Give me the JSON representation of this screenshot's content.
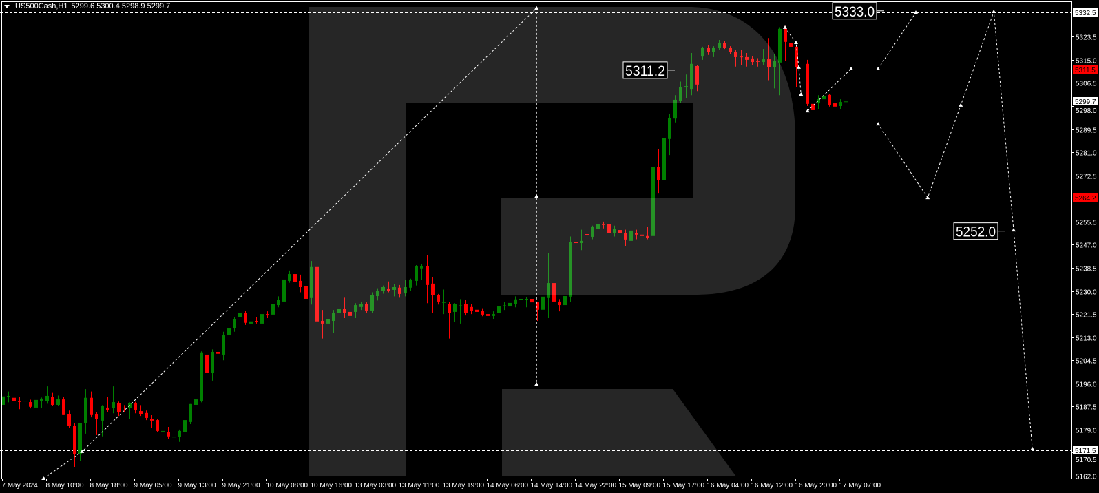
{
  "header": {
    "symbol": ".US500Cash,H1",
    "ohlc": "5299.6 5300.4 5298.9 5299.7",
    "menu_icon": "triangle-down-icon"
  },
  "chart_data": {
    "type": "candlestick",
    "title": ".US500Cash,H1",
    "ylim": [
      5161.0,
      5337.0
    ],
    "grid": false,
    "colors": {
      "up": "#008000",
      "down": "#ff0000",
      "background": "#000000",
      "axis": "#ffffff",
      "watermark": "#262626"
    },
    "x_tick_labels": [
      "7 May 2024",
      "8 May 10:00",
      "8 May 18:00",
      "9 May 05:00",
      "9 May 13:00",
      "9 May 21:00",
      "10 May 08:00",
      "10 May 16:00",
      "13 May 03:00",
      "13 May 11:00",
      "13 May 19:00",
      "14 May 06:00",
      "14 May 14:00",
      "14 May 22:00",
      "15 May 09:00",
      "15 May 17:00",
      "16 May 04:00",
      "16 May 12:00",
      "16 May 20:00",
      "17 May 07:00"
    ],
    "y_tick_labels": [
      "5323.5",
      "5315.0",
      "5306.5",
      "5298.0",
      "5289.5",
      "5281.0",
      "5272.5",
      "5255.5",
      "5247.0",
      "5238.5",
      "5230.0",
      "5221.5",
      "5213.0",
      "5204.5",
      "5196.0",
      "5187.5",
      "5179.0",
      "5170.5",
      "5162.0"
    ],
    "candles": [
      [
        5188.1,
        5192.5,
        5183.5,
        5191.2
      ],
      [
        5190.9,
        5193.0,
        5189.0,
        5191.4
      ],
      [
        5190.7,
        5192.5,
        5188.5,
        5189.4
      ],
      [
        5189.4,
        5191.0,
        5186.5,
        5189.3
      ],
      [
        5189.4,
        5191.0,
        5187.5,
        5189.6
      ],
      [
        5189.1,
        5190.0,
        5186.8,
        5187.4
      ],
      [
        5187.1,
        5190.2,
        5186.5,
        5189.9
      ],
      [
        5189.6,
        5190.8,
        5187.0,
        5190.4
      ],
      [
        5189.6,
        5194.9,
        5188.5,
        5191.4
      ],
      [
        5190.9,
        5192.5,
        5187.6,
        5188.1
      ],
      [
        5188.1,
        5191.5,
        5187.6,
        5190.1
      ],
      [
        5190.1,
        5191.0,
        5184.6,
        5184.6
      ],
      [
        5184.8,
        5186.0,
        5179.5,
        5180.5
      ],
      [
        5180.5,
        5181.5,
        5165.3,
        5170.1
      ],
      [
        5170.1,
        5181.5,
        5167.5,
        5181.5
      ],
      [
        5181.3,
        5193.9,
        5177.5,
        5190.7
      ],
      [
        5190.7,
        5193.0,
        5183.5,
        5184.6
      ],
      [
        5184.8,
        5185.5,
        5177.0,
        5182.8
      ],
      [
        5182.3,
        5188.0,
        5176.5,
        5187.6
      ],
      [
        5187.1,
        5191.0,
        5185.5,
        5186.3
      ],
      [
        5186.9,
        5194.9,
        5185.0,
        5189.1
      ],
      [
        5188.6,
        5189.3,
        5184.0,
        5185.3
      ],
      [
        5187.1,
        5188.0,
        5185.5,
        5186.9
      ],
      [
        5186.9,
        5189.0,
        5183.0,
        5188.6
      ],
      [
        5188.6,
        5189.2,
        5185.0,
        5186.3
      ],
      [
        5185.8,
        5188.0,
        5184.0,
        5184.8
      ],
      [
        5185.1,
        5186.0,
        5182.5,
        5183.3
      ],
      [
        5182.8,
        5184.5,
        5179.5,
        5182.3
      ],
      [
        5182.5,
        5183.0,
        5178.0,
        5178.5
      ],
      [
        5178.3,
        5182.0,
        5175.5,
        5178.5
      ],
      [
        5178.0,
        5180.0,
        5175.5,
        5176.5
      ],
      [
        5176.2,
        5178.5,
        5171.7,
        5176.4
      ],
      [
        5176.2,
        5179.0,
        5174.5,
        5178.5
      ],
      [
        5178.2,
        5185.5,
        5175.5,
        5182.5
      ],
      [
        5181.8,
        5188.4,
        5181.0,
        5188.4
      ],
      [
        5188.1,
        5190.1,
        5185.5,
        5190.1
      ],
      [
        5189.4,
        5207.8,
        5189.0,
        5207.4
      ],
      [
        5206.6,
        5210.0,
        5197.5,
        5199.8
      ],
      [
        5200.0,
        5208.5,
        5197.0,
        5207.6
      ],
      [
        5207.6,
        5210.5,
        5206.0,
        5206.9
      ],
      [
        5206.6,
        5215.0,
        5204.5,
        5213.9
      ],
      [
        5213.7,
        5218.5,
        5211.5,
        5216.2
      ],
      [
        5216.2,
        5220.5,
        5215.0,
        5219.5
      ],
      [
        5220.3,
        5222.5,
        5219.0,
        5222.0
      ],
      [
        5222.0,
        5222.8,
        5217.5,
        5218.3
      ],
      [
        5218.0,
        5219.8,
        5217.0,
        5218.8
      ],
      [
        5219.0,
        5220.5,
        5218.0,
        5218.8
      ],
      [
        5218.0,
        5221.8,
        5217.0,
        5221.5
      ],
      [
        5221.5,
        5222.5,
        5220.0,
        5221.0
      ],
      [
        5221.3,
        5225.5,
        5220.0,
        5225.1
      ],
      [
        5224.8,
        5228.0,
        5224.0,
        5226.6
      ],
      [
        5226.1,
        5234.5,
        5225.5,
        5234.2
      ],
      [
        5233.7,
        5237.5,
        5233.0,
        5236.2
      ],
      [
        5236.2,
        5236.8,
        5233.0,
        5233.4
      ],
      [
        5233.7,
        5236.0,
        5229.5,
        5231.4
      ],
      [
        5231.7,
        5235.5,
        5227.0,
        5227.1
      ],
      [
        5227.4,
        5241.0,
        5225.0,
        5238.8
      ],
      [
        5238.8,
        5239.2,
        5216.0,
        5218.8
      ],
      [
        5219.0,
        5223.0,
        5212.5,
        5218.0
      ],
      [
        5218.0,
        5222.0,
        5214.0,
        5219.5
      ],
      [
        5219.0,
        5223.0,
        5214.5,
        5222.0
      ],
      [
        5222.0,
        5224.0,
        5217.0,
        5223.3
      ],
      [
        5223.3,
        5227.5,
        5220.0,
        5222.0
      ],
      [
        5222.3,
        5223.0,
        5219.8,
        5220.8
      ],
      [
        5222.3,
        5225.5,
        5220.0,
        5224.8
      ],
      [
        5224.1,
        5226.0,
        5223.0,
        5225.1
      ],
      [
        5225.1,
        5225.8,
        5222.0,
        5222.8
      ],
      [
        5222.8,
        5229.5,
        5222.0,
        5228.4
      ],
      [
        5228.1,
        5231.0,
        5226.5,
        5230.1
      ],
      [
        5229.9,
        5232.0,
        5229.0,
        5231.4
      ],
      [
        5230.9,
        5233.5,
        5229.5,
        5229.9
      ],
      [
        5230.4,
        5232.5,
        5228.0,
        5231.4
      ],
      [
        5231.2,
        5232.2,
        5227.5,
        5228.9
      ],
      [
        5229.1,
        5234.0,
        5228.0,
        5231.4
      ],
      [
        5231.2,
        5234.5,
        5230.0,
        5234.2
      ],
      [
        5233.7,
        5239.5,
        5232.0,
        5239.0
      ],
      [
        5238.3,
        5240.0,
        5234.0,
        5239.0
      ],
      [
        5239.0,
        5243.3,
        5225.5,
        5232.2
      ],
      [
        5232.7,
        5235.0,
        5222.0,
        5228.4
      ],
      [
        5228.6,
        5228.9,
        5225.0,
        5226.1
      ],
      [
        5225.8,
        5230.5,
        5221.5,
        5225.9
      ],
      [
        5225.3,
        5226.0,
        5212.5,
        5222.0
      ],
      [
        5222.3,
        5225.5,
        5218.5,
        5225.1
      ],
      [
        5224.6,
        5227.0,
        5218.0,
        5224.7
      ],
      [
        5225.3,
        5226.7,
        5221.0,
        5222.0
      ],
      [
        5224.1,
        5225.2,
        5221.5,
        5222.8
      ],
      [
        5223.1,
        5223.8,
        5221.0,
        5222.3
      ],
      [
        5222.6,
        5223.4,
        5220.7,
        5221.3
      ],
      [
        5221.5,
        5222.0,
        5220.0,
        5220.8
      ],
      [
        5220.8,
        5222.5,
        5219.7,
        5221.5
      ],
      [
        5221.8,
        5225.8,
        5221.0,
        5224.3
      ],
      [
        5224.6,
        5226.0,
        5223.0,
        5224.7
      ],
      [
        5224.3,
        5227.0,
        5222.0,
        5225.6
      ],
      [
        5225.3,
        5228.0,
        5224.0,
        5226.9
      ],
      [
        5226.6,
        5228.0,
        5223.5,
        5227.1
      ],
      [
        5226.6,
        5227.8,
        5224.0,
        5227.1
      ],
      [
        5227.1,
        5228.0,
        5223.5,
        5225.8
      ],
      [
        5225.8,
        5226.0,
        5219.0,
        5223.1
      ],
      [
        5223.1,
        5234.5,
        5219.0,
        5227.9
      ],
      [
        5227.4,
        5244.0,
        5220.0,
        5232.9
      ],
      [
        5232.9,
        5240.0,
        5220.0,
        5226.1
      ],
      [
        5226.1,
        5227.0,
        5222.5,
        5224.8
      ],
      [
        5224.8,
        5231.0,
        5219.0,
        5228.1
      ],
      [
        5227.9,
        5250.0,
        5226.0,
        5248.1
      ],
      [
        5247.9,
        5250.5,
        5243.5,
        5247.6
      ],
      [
        5247.6,
        5252.5,
        5245.0,
        5248.4
      ],
      [
        5250.9,
        5252.0,
        5248.0,
        5250.4
      ],
      [
        5249.9,
        5254.0,
        5249.0,
        5253.7
      ],
      [
        5252.9,
        5256.5,
        5252.0,
        5254.7
      ],
      [
        5254.5,
        5255.5,
        5253.0,
        5254.4
      ],
      [
        5254.5,
        5255.5,
        5250.9,
        5251.2
      ],
      [
        5251.2,
        5254.0,
        5250.0,
        5252.7
      ],
      [
        5252.4,
        5254.0,
        5249.5,
        5251.2
      ],
      [
        5251.4,
        5252.5,
        5246.5,
        5248.9
      ],
      [
        5248.4,
        5252.4,
        5247.5,
        5252.2
      ],
      [
        5251.4,
        5252.5,
        5249.0,
        5250.7
      ],
      [
        5250.7,
        5252.0,
        5248.5,
        5250.2
      ],
      [
        5250.2,
        5253.5,
        5249.0,
        5249.4
      ],
      [
        5250.2,
        5282.3,
        5245.1,
        5275.5
      ],
      [
        5275.5,
        5282.3,
        5265.8,
        5270.9
      ],
      [
        5270.9,
        5287.5,
        5270.5,
        5286.1
      ],
      [
        5285.9,
        5295.0,
        5280.0,
        5293.7
      ],
      [
        5293.4,
        5302.0,
        5292.0,
        5300.3
      ],
      [
        5300.0,
        5307.0,
        5299.0,
        5305.1
      ],
      [
        5305.1,
        5309.6,
        5301.0,
        5305.3
      ],
      [
        5304.3,
        5317.5,
        5302.0,
        5313.5
      ],
      [
        5312.7,
        5313.0,
        5303.5,
        5305.9
      ],
      [
        5316.2,
        5319.8,
        5315.0,
        5319.3
      ],
      [
        5319.3,
        5320.5,
        5316.8,
        5318.0
      ],
      [
        5318.0,
        5320.0,
        5316.0,
        5319.5
      ],
      [
        5319.5,
        5322.3,
        5318.5,
        5321.3
      ],
      [
        5321.3,
        5321.8,
        5319.0,
        5319.3
      ],
      [
        5319.5,
        5320.0,
        5317.0,
        5317.8
      ],
      [
        5317.8,
        5318.5,
        5312.5,
        5316.0
      ],
      [
        5316.2,
        5318.5,
        5313.0,
        5316.1
      ],
      [
        5316.0,
        5317.5,
        5312.5,
        5315.0
      ],
      [
        5315.5,
        5316.5,
        5313.0,
        5314.2
      ],
      [
        5314.5,
        5315.6,
        5312.5,
        5314.4
      ],
      [
        5314.2,
        5319.0,
        5313.0,
        5315.2
      ],
      [
        5315.2,
        5323.0,
        5307.5,
        5312.2
      ],
      [
        5312.2,
        5317.0,
        5304.5,
        5314.7
      ],
      [
        5314.0,
        5327.0,
        5302.0,
        5326.4
      ],
      [
        5326.4,
        5327.5,
        5314.5,
        5321.6
      ],
      [
        5321.3,
        5322.0,
        5308.0,
        5319.8
      ],
      [
        5319.8,
        5320.5,
        5305.0,
        5312.4
      ],
      [
        5313.0,
        5313.7,
        5304.0,
        5313.2
      ],
      [
        5313.5,
        5315.0,
        5298.0,
        5298.8
      ],
      [
        5298.8,
        5300.5,
        5296.0,
        5296.5
      ],
      [
        5299.0,
        5302.0,
        5297.0,
        5300.5
      ],
      [
        5300.5,
        5303.0,
        5299.5,
        5301.8
      ],
      [
        5302.1,
        5302.5,
        5297.8,
        5298.5
      ],
      [
        5299.0,
        5299.5,
        5297.6,
        5297.8
      ],
      [
        5298.0,
        5300.5,
        5297.0,
        5299.5
      ],
      [
        5299.6,
        5300.4,
        5298.9,
        5299.7
      ]
    ],
    "levels": [
      {
        "price": 5332.5,
        "label": "5332.5",
        "color": "#ffffff",
        "text_color": "#000000"
      },
      {
        "price": 5311.5,
        "label": "5311.5",
        "color": "#ff0000",
        "text_color": "#000000"
      },
      {
        "price": 5299.7,
        "label": "5299.7",
        "color": "#ffffff",
        "text_color": "#000000",
        "line": false
      },
      {
        "price": 5264.2,
        "label": "5264.2",
        "color": "#ff0000",
        "text_color": "#000000"
      },
      {
        "price": 5171.5,
        "label": "5171.5",
        "color": "#ffffff",
        "text_color": "#000000"
      }
    ],
    "drawings": [
      {
        "points": [
          [
            7.4,
            5161.0
          ],
          [
            14.4,
            5170.9
          ],
          [
            96.9,
            5334.0
          ]
        ]
      },
      {
        "points": [
          [
            96.9,
            5334.0
          ],
          [
            96.9,
            5264.8
          ],
          [
            96.9,
            5195.7
          ]
        ]
      },
      {
        "points": [
          [
            142,
            5326.9
          ],
          [
            144,
            5321.3
          ],
          [
            144.5,
            5312.2
          ],
          [
            144.9,
            5302.3
          ]
        ]
      },
      {
        "points": [
          [
            146.1,
            5296.2
          ],
          [
            154,
            5311.7
          ]
        ]
      },
      {
        "points": [
          [
            158.9,
            5311.7
          ],
          [
            165.75,
            5332.4
          ]
        ]
      },
      {
        "points": [
          [
            158.9,
            5291.4
          ],
          [
            167.9,
            5264.3
          ],
          [
            173.9,
            5298.3
          ],
          [
            179.9,
            5332.7
          ],
          [
            183.5,
            5252.4
          ],
          [
            186.9,
            5171.9
          ]
        ]
      }
    ],
    "callouts": [
      {
        "text": "5333.0",
        "price": 5333.0,
        "index": 160
      },
      {
        "text": "5311.2",
        "price": 5311.2,
        "index": 122
      },
      {
        "text": "5252.0",
        "price": 5252.0,
        "index": 182
      }
    ]
  },
  "watermark": {
    "logo": "R"
  }
}
